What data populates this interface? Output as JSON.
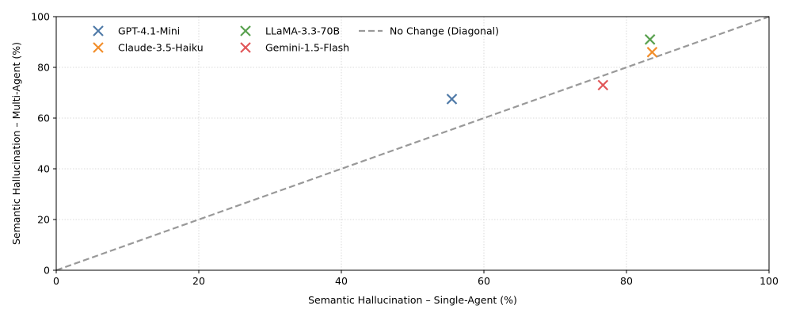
{
  "chart_data": {
    "type": "scatter",
    "xlabel": "Semantic Hallucination – Single-Agent (%)",
    "ylabel": "Semantic Hallucination – Multi-Agent (%)",
    "xlim": [
      0,
      100
    ],
    "ylim": [
      0,
      100
    ],
    "xticks": [
      "0",
      "20",
      "40",
      "60",
      "80",
      "100"
    ],
    "yticks": [
      "0",
      "20",
      "40",
      "60",
      "80",
      "100"
    ],
    "grid": true,
    "legend_position": "upper-left",
    "series": [
      {
        "name": "GPT-4.1-Mini",
        "color": "#4e79a7",
        "marker": "x",
        "x": [
          55.5
        ],
        "y": [
          67.5
        ]
      },
      {
        "name": "Claude-3.5-Haiku",
        "color": "#f28e2b",
        "marker": "x",
        "x": [
          83.6
        ],
        "y": [
          86.0
        ]
      },
      {
        "name": "LLaMA-3.3-70B",
        "color": "#59a14f",
        "marker": "x",
        "x": [
          83.3
        ],
        "y": [
          91.0
        ]
      },
      {
        "name": "Gemini-1.5-Flash",
        "color": "#e15759",
        "marker": "x",
        "x": [
          76.7
        ],
        "y": [
          73.0
        ]
      }
    ],
    "reference_line": {
      "name": "No Change (Diagonal)",
      "color": "#999999",
      "style": "dashed",
      "x": [
        0,
        100
      ],
      "y": [
        0,
        100
      ]
    }
  }
}
